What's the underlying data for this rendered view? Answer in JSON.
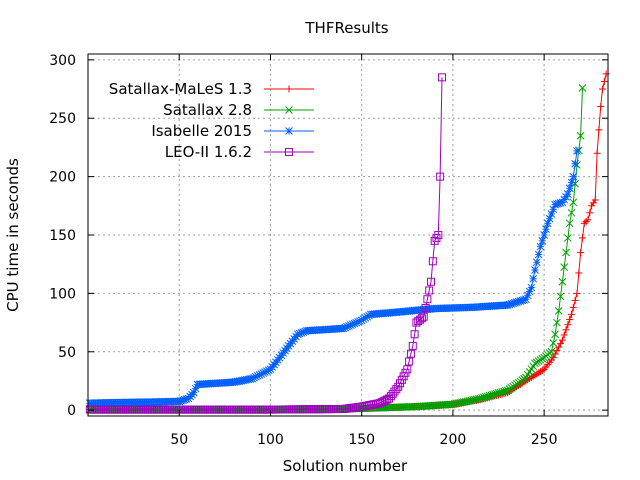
{
  "chart_data": {
    "type": "line",
    "title": "THFResults",
    "xlabel": "Solution number",
    "ylabel": "CPU time in seconds",
    "xlim": [
      0,
      285
    ],
    "ylim": [
      -5,
      305
    ],
    "xticks": [
      50,
      100,
      150,
      200,
      250
    ],
    "yticks": [
      0,
      50,
      100,
      150,
      200,
      250,
      300
    ],
    "grid": true,
    "legend_position": "top-left",
    "series": [
      {
        "name": "Satallax-MaLeS 1.3",
        "color": "#ff0000",
        "marker": "plus",
        "points": [
          [
            1,
            0.5
          ],
          [
            50,
            0.5
          ],
          [
            100,
            0.5
          ],
          [
            140,
            1
          ],
          [
            160,
            2
          ],
          [
            180,
            3
          ],
          [
            200,
            5
          ],
          [
            215,
            9
          ],
          [
            230,
            15
          ],
          [
            240,
            25
          ],
          [
            245,
            30
          ],
          [
            250,
            35
          ],
          [
            255,
            45
          ],
          [
            260,
            60
          ],
          [
            265,
            82
          ],
          [
            268,
            100
          ],
          [
            270,
            135
          ],
          [
            272,
            160
          ],
          [
            274,
            163
          ],
          [
            276,
            175
          ],
          [
            278,
            180
          ],
          [
            279,
            220
          ],
          [
            281,
            260
          ],
          [
            282,
            275
          ],
          [
            284,
            288
          ]
        ]
      },
      {
        "name": "Satallax 2.8",
        "color": "#00a000",
        "marker": "cross",
        "points": [
          [
            1,
            0.5
          ],
          [
            50,
            0.5
          ],
          [
            100,
            0.5
          ],
          [
            140,
            1
          ],
          [
            160,
            2
          ],
          [
            180,
            3
          ],
          [
            200,
            5
          ],
          [
            215,
            10
          ],
          [
            230,
            17
          ],
          [
            240,
            28
          ],
          [
            245,
            40
          ],
          [
            250,
            45
          ],
          [
            254,
            50
          ],
          [
            256,
            65
          ],
          [
            258,
            85
          ],
          [
            260,
            110
          ],
          [
            262,
            135
          ],
          [
            264,
            160
          ],
          [
            266,
            178
          ],
          [
            268,
            210
          ],
          [
            270,
            235
          ],
          [
            271,
            276
          ]
        ]
      },
      {
        "name": "Isabelle 2015",
        "color": "#0060ff",
        "marker": "star",
        "points": [
          [
            1,
            6
          ],
          [
            15,
            6.5
          ],
          [
            35,
            7
          ],
          [
            50,
            7.5
          ],
          [
            55,
            10
          ],
          [
            58,
            15
          ],
          [
            60,
            22
          ],
          [
            80,
            24
          ],
          [
            90,
            27
          ],
          [
            100,
            35
          ],
          [
            105,
            45
          ],
          [
            110,
            55
          ],
          [
            115,
            65
          ],
          [
            120,
            68
          ],
          [
            140,
            70
          ],
          [
            150,
            77
          ],
          [
            155,
            82
          ],
          [
            170,
            84
          ],
          [
            190,
            87
          ],
          [
            210,
            88
          ],
          [
            230,
            90
          ],
          [
            240,
            95
          ],
          [
            243,
            105
          ],
          [
            245,
            120
          ],
          [
            248,
            140
          ],
          [
            252,
            160
          ],
          [
            256,
            176
          ],
          [
            260,
            178
          ],
          [
            263,
            185
          ],
          [
            266,
            200
          ],
          [
            268,
            222
          ]
        ]
      },
      {
        "name": "LEO-II 1.6.2",
        "color": "#a000c0",
        "marker": "square",
        "points": [
          [
            1,
            0.5
          ],
          [
            50,
            0.5
          ],
          [
            100,
            0.5
          ],
          [
            140,
            1
          ],
          [
            150,
            3
          ],
          [
            160,
            6
          ],
          [
            165,
            10
          ],
          [
            170,
            20
          ],
          [
            175,
            35
          ],
          [
            178,
            55
          ],
          [
            180,
            75
          ],
          [
            184,
            80
          ],
          [
            186,
            95
          ],
          [
            188,
            110
          ],
          [
            190,
            145
          ],
          [
            192,
            150
          ],
          [
            193,
            200
          ],
          [
            194,
            285
          ]
        ]
      }
    ]
  }
}
